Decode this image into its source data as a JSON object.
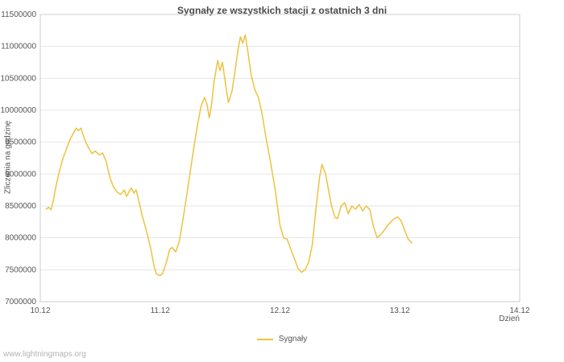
{
  "chart_data": {
    "type": "line",
    "title": "Sygnały ze wszystkich stacji z ostatnich 3 dni",
    "xlabel": "Dzień",
    "ylabel": "Zliczenia na godzinę",
    "xlim": [
      10,
      14
    ],
    "ylim": [
      7000000,
      11500000
    ],
    "grid": true,
    "legend_position": "bottom-center",
    "x_ticks": [
      {
        "value": 10,
        "label": "10.12"
      },
      {
        "value": 11,
        "label": "11.12"
      },
      {
        "value": 12,
        "label": "12.12"
      },
      {
        "value": 13,
        "label": "13.12"
      },
      {
        "value": 14,
        "label": "14.12"
      }
    ],
    "y_ticks": [
      {
        "value": 7000000,
        "label": "7000000"
      },
      {
        "value": 7500000,
        "label": "7500000"
      },
      {
        "value": 8000000,
        "label": "8000000"
      },
      {
        "value": 8500000,
        "label": "8500000"
      },
      {
        "value": 9000000,
        "label": "9000000"
      },
      {
        "value": 9500000,
        "label": "9500000"
      },
      {
        "value": 10000000,
        "label": "10000000"
      },
      {
        "value": 10500000,
        "label": "10500000"
      },
      {
        "value": 11000000,
        "label": "11000000"
      },
      {
        "value": 11500000,
        "label": "11500000"
      }
    ],
    "series": [
      {
        "name": "Sygnały",
        "color": "#edc240",
        "points": [
          [
            10.05,
            8450000
          ],
          [
            10.07,
            8480000
          ],
          [
            10.09,
            8440000
          ],
          [
            10.11,
            8600000
          ],
          [
            10.13,
            8800000
          ],
          [
            10.16,
            9050000
          ],
          [
            10.19,
            9250000
          ],
          [
            10.22,
            9400000
          ],
          [
            10.25,
            9550000
          ],
          [
            10.28,
            9650000
          ],
          [
            10.3,
            9720000
          ],
          [
            10.32,
            9680000
          ],
          [
            10.34,
            9720000
          ],
          [
            10.36,
            9600000
          ],
          [
            10.38,
            9500000
          ],
          [
            10.4,
            9420000
          ],
          [
            10.43,
            9320000
          ],
          [
            10.46,
            9360000
          ],
          [
            10.49,
            9300000
          ],
          [
            10.52,
            9330000
          ],
          [
            10.55,
            9200000
          ],
          [
            10.58,
            8950000
          ],
          [
            10.61,
            8800000
          ],
          [
            10.64,
            8720000
          ],
          [
            10.67,
            8680000
          ],
          [
            10.7,
            8750000
          ],
          [
            10.72,
            8650000
          ],
          [
            10.74,
            8720000
          ],
          [
            10.76,
            8780000
          ],
          [
            10.78,
            8700000
          ],
          [
            10.8,
            8750000
          ],
          [
            10.82,
            8600000
          ],
          [
            10.85,
            8350000
          ],
          [
            10.88,
            8150000
          ],
          [
            10.9,
            8000000
          ],
          [
            10.92,
            7850000
          ],
          [
            10.95,
            7550000
          ],
          [
            10.97,
            7430000
          ],
          [
            11.0,
            7410000
          ],
          [
            11.02,
            7440000
          ],
          [
            11.05,
            7600000
          ],
          [
            11.08,
            7820000
          ],
          [
            11.1,
            7850000
          ],
          [
            11.13,
            7780000
          ],
          [
            11.16,
            7950000
          ],
          [
            11.2,
            8400000
          ],
          [
            11.24,
            8900000
          ],
          [
            11.28,
            9400000
          ],
          [
            11.31,
            9750000
          ],
          [
            11.34,
            10050000
          ],
          [
            11.37,
            10200000
          ],
          [
            11.39,
            10100000
          ],
          [
            11.41,
            9880000
          ],
          [
            11.43,
            10100000
          ],
          [
            11.45,
            10450000
          ],
          [
            11.48,
            10780000
          ],
          [
            11.5,
            10620000
          ],
          [
            11.52,
            10750000
          ],
          [
            11.55,
            10350000
          ],
          [
            11.57,
            10120000
          ],
          [
            11.6,
            10300000
          ],
          [
            11.62,
            10550000
          ],
          [
            11.65,
            10950000
          ],
          [
            11.67,
            11150000
          ],
          [
            11.69,
            11050000
          ],
          [
            11.71,
            11180000
          ],
          [
            11.73,
            10950000
          ],
          [
            11.76,
            10550000
          ],
          [
            11.79,
            10320000
          ],
          [
            11.82,
            10200000
          ],
          [
            11.85,
            9950000
          ],
          [
            11.88,
            9600000
          ],
          [
            11.92,
            9200000
          ],
          [
            11.96,
            8750000
          ],
          [
            12.0,
            8200000
          ],
          [
            12.03,
            8000000
          ],
          [
            12.06,
            7980000
          ],
          [
            12.09,
            7820000
          ],
          [
            12.12,
            7680000
          ],
          [
            12.15,
            7520000
          ],
          [
            12.18,
            7460000
          ],
          [
            12.21,
            7500000
          ],
          [
            12.24,
            7620000
          ],
          [
            12.27,
            7900000
          ],
          [
            12.3,
            8450000
          ],
          [
            12.33,
            8950000
          ],
          [
            12.35,
            9150000
          ],
          [
            12.38,
            9000000
          ],
          [
            12.4,
            8800000
          ],
          [
            12.43,
            8500000
          ],
          [
            12.46,
            8320000
          ],
          [
            12.48,
            8300000
          ],
          [
            12.51,
            8500000
          ],
          [
            12.54,
            8550000
          ],
          [
            12.57,
            8380000
          ],
          [
            12.6,
            8500000
          ],
          [
            12.63,
            8450000
          ],
          [
            12.66,
            8520000
          ],
          [
            12.69,
            8420000
          ],
          [
            12.72,
            8500000
          ],
          [
            12.75,
            8440000
          ],
          [
            12.78,
            8180000
          ],
          [
            12.81,
            8000000
          ],
          [
            12.84,
            8050000
          ],
          [
            12.87,
            8120000
          ],
          [
            12.9,
            8200000
          ],
          [
            12.94,
            8280000
          ],
          [
            12.98,
            8330000
          ],
          [
            13.01,
            8270000
          ],
          [
            13.04,
            8120000
          ],
          [
            13.07,
            7980000
          ],
          [
            13.1,
            7920000
          ]
        ]
      }
    ]
  },
  "legend": {
    "label": "Sygnały"
  },
  "footer": {
    "watermark": "www.lightningmaps.org"
  },
  "colors": {
    "line": "#edc240",
    "grid": "#e6e6e6",
    "plot_border": "#cccccc",
    "axis_text": "#555555",
    "title_text": "#4a4a4a",
    "watermark_text": "#b3b3b3"
  }
}
